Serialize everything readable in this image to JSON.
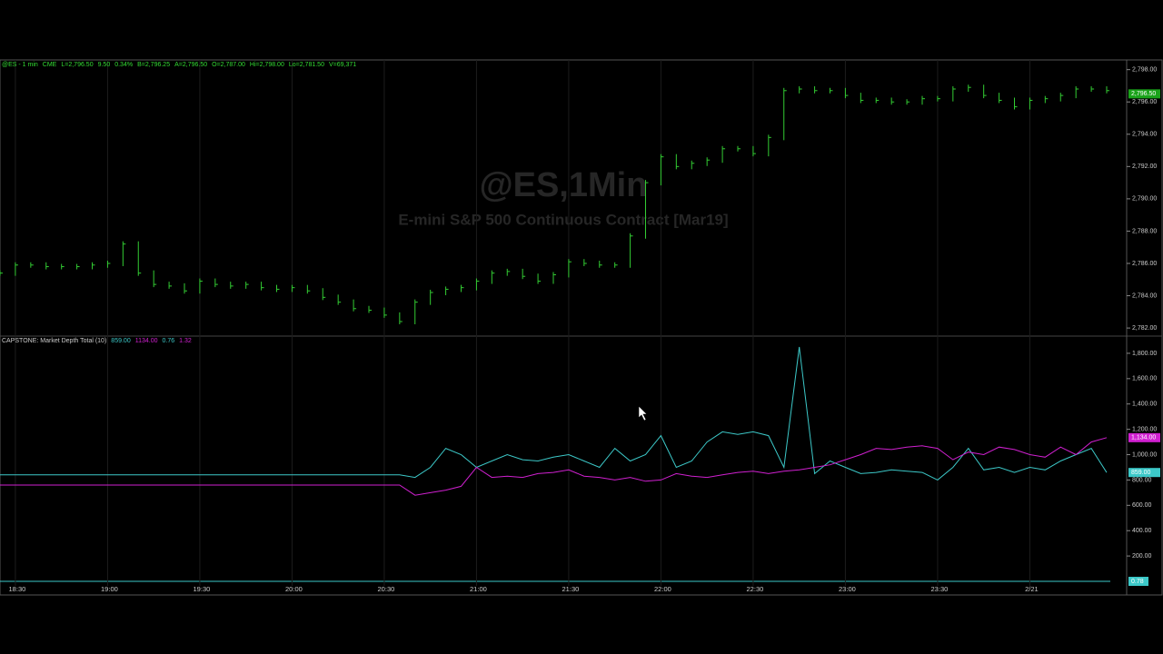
{
  "chart_data": [
    {
      "type": "stock",
      "title": "@ES,1Min",
      "subtitle": "E-mini S&P 500 Continuous Contract [Mar19]",
      "quote": [
        "@ES - 1 min",
        "CME",
        "L=2,796.50",
        "9.50",
        "0.34%",
        "B=2,796.25",
        "A=2,796.50",
        "O=2,787.00",
        "Hi=2,798.00",
        "Lo=2,781.50",
        "V=69,371"
      ],
      "color": "#33cc33",
      "values": [
        2785.4,
        2785.9,
        2785.9,
        2785.8,
        2785.8,
        2785.8,
        2785.9,
        2786.0,
        2787.2,
        2785.4,
        2784.7,
        2784.6,
        2784.3,
        2784.9,
        2784.7,
        2784.6,
        2784.7,
        2784.5,
        2784.4,
        2784.5,
        2784.3,
        2783.9,
        2783.6,
        2783.2,
        2783.1,
        2782.8,
        2782.4,
        2783.6,
        2784.2,
        2784.4,
        2784.5,
        2784.9,
        2785.4,
        2785.5,
        2785.2,
        2784.9,
        2785.3,
        2786.1,
        2786.0,
        2785.9,
        2785.9,
        2787.7,
        2791.0,
        2792.6,
        2792.0,
        2792.2,
        2792.4,
        2793.1,
        2793.1,
        2792.8,
        2793.8,
        2796.7,
        2796.8,
        2796.7,
        2796.7,
        2796.4,
        2796.1,
        2796.1,
        2796.0,
        2796.0,
        2796.2,
        2796.2,
        2796.8,
        2796.9,
        2796.4,
        2796.1,
        2795.7,
        2796.1,
        2796.2,
        2796.4,
        2796.8,
        2796.8,
        2796.7
      ],
      "last": {
        "value": 2796.5,
        "label": "2,796.50"
      },
      "ylim": [
        2781.5,
        2798.6
      ],
      "yticks": [
        {
          "value": 2798,
          "label": "2,798.00"
        },
        {
          "value": 2796,
          "label": "2,796.00"
        },
        {
          "value": 2794,
          "label": "2,794.00"
        },
        {
          "value": 2792,
          "label": "2,792.00"
        },
        {
          "value": 2790,
          "label": "2,790.00"
        },
        {
          "value": 2788,
          "label": "2,788.00"
        },
        {
          "value": 2786,
          "label": "2,786.00"
        },
        {
          "value": 2784,
          "label": "2,784.00"
        },
        {
          "value": 2782,
          "label": "2,782.00"
        }
      ]
    },
    {
      "type": "line",
      "title": "CAPSTONE: Market Depth Total (10)",
      "indicator_values": [
        {
          "text": "859.00",
          "color": "#3cc8c8"
        },
        {
          "text": "1134.00",
          "color": "#d020d0"
        },
        {
          "text": "0.76",
          "color": "#3cc8c8"
        },
        {
          "text": "1.32",
          "color": "#d020d0"
        }
      ],
      "categories": [
        null,
        "18:30",
        null,
        null,
        null,
        null,
        null,
        "19:00",
        null,
        null,
        null,
        null,
        null,
        "19:30",
        null,
        null,
        null,
        null,
        null,
        "20:00",
        null,
        null,
        null,
        null,
        null,
        "20:30",
        null,
        null,
        null,
        null,
        null,
        "21:00",
        null,
        null,
        null,
        null,
        null,
        "21:30",
        null,
        null,
        null,
        null,
        null,
        "22:00",
        null,
        null,
        null,
        null,
        null,
        "22:30",
        null,
        null,
        null,
        null,
        null,
        "23:00",
        null,
        null,
        null,
        null,
        null,
        "23:30",
        null,
        null,
        null,
        null,
        null,
        "2/21",
        null,
        null,
        null,
        null,
        null
      ],
      "series": [
        {
          "color": "#3cc8c8",
          "values": [
            840,
            840,
            840,
            840,
            840,
            840,
            840,
            840,
            840,
            840,
            840,
            840,
            840,
            840,
            840,
            840,
            840,
            840,
            840,
            840,
            840,
            840,
            840,
            840,
            840,
            840,
            840,
            820,
            900,
            1050,
            1000,
            900,
            950,
            1000,
            960,
            950,
            980,
            1000,
            950,
            900,
            1050,
            950,
            1000,
            1150,
            900,
            950,
            1100,
            1180,
            1160,
            1180,
            1150,
            900,
            1850,
            850,
            950,
            900,
            850,
            860,
            880,
            870,
            860,
            800,
            900,
            1050,
            880,
            900,
            860,
            900,
            880,
            950,
            1000,
            1050,
            859
          ],
          "last": {
            "value": 859,
            "label": "859.00"
          }
        },
        {
          "color": "#d020d0",
          "values": [
            760,
            760,
            760,
            760,
            760,
            760,
            760,
            760,
            760,
            760,
            760,
            760,
            760,
            760,
            760,
            760,
            760,
            760,
            760,
            760,
            760,
            760,
            760,
            760,
            760,
            760,
            760,
            680,
            700,
            720,
            750,
            900,
            820,
            830,
            820,
            850,
            860,
            880,
            830,
            820,
            800,
            820,
            790,
            800,
            850,
            830,
            820,
            840,
            860,
            870,
            850,
            870,
            880,
            900,
            920,
            960,
            1000,
            1050,
            1040,
            1060,
            1070,
            1050,
            960,
            1020,
            1000,
            1060,
            1040,
            1000,
            980,
            1060,
            1000,
            1100,
            1134
          ],
          "last": {
            "value": 1134,
            "label": "1,134.00"
          }
        }
      ],
      "ratio_tag": "0.78",
      "ylim": [
        0,
        1900
      ],
      "yticks": [
        {
          "value": 1800,
          "label": "1,800.00"
        },
        {
          "value": 1600,
          "label": "1,600.00"
        },
        {
          "value": 1400,
          "label": "1,400.00"
        },
        {
          "value": 1200,
          "label": "1,200.00"
        },
        {
          "value": 1000,
          "label": "1,000.00"
        },
        {
          "value": 800,
          "label": "800.00"
        },
        {
          "value": 600,
          "label": "600.00"
        },
        {
          "value": 400,
          "label": "400.00"
        },
        {
          "value": 200,
          "label": "200.00"
        }
      ]
    }
  ]
}
